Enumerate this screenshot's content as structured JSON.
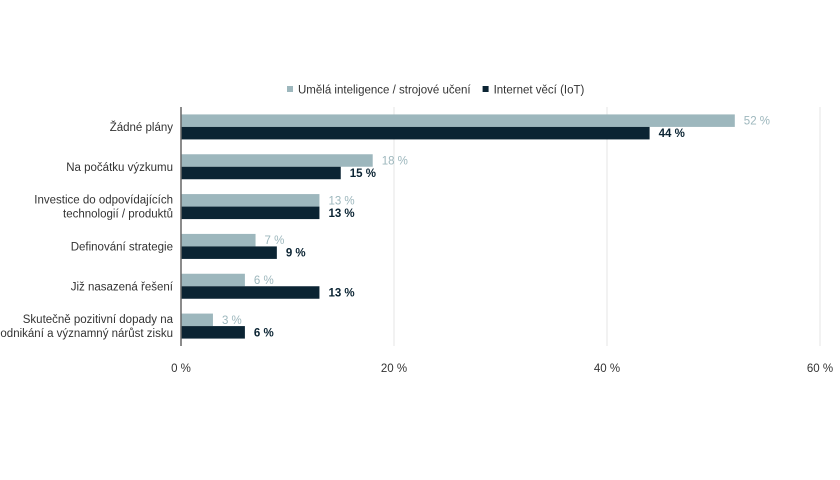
{
  "chart_data": {
    "type": "bar",
    "orientation": "horizontal",
    "categories": [
      [
        "Žádné plány"
      ],
      [
        "Na počátku výzkumu"
      ],
      [
        "Investice do odpovídajících",
        "technologií / produktů"
      ],
      [
        "Definování strategie"
      ],
      [
        "Již nasazená řešení"
      ],
      [
        "Skutečně pozitivní dopady na",
        "podnikání a významný nárůst zisku"
      ]
    ],
    "series": [
      {
        "name": "Umělá inteligence / strojové učení",
        "color": "#9db7bd",
        "values": [
          52,
          18,
          13,
          7,
          6,
          3
        ],
        "labels": [
          "52 %",
          "18 %",
          "13 %",
          "7 %",
          "6 %",
          "3 %"
        ]
      },
      {
        "name": "Internet věcí (IoT)",
        "color": "#0b2433",
        "values": [
          44,
          15,
          13,
          9,
          13,
          6
        ],
        "labels": [
          "44 %",
          "15 %",
          "13 %",
          "9 %",
          "13 %",
          "6 %"
        ]
      }
    ],
    "xlim": [
      0,
      60
    ],
    "xticks": [
      0,
      20,
      40,
      60
    ],
    "xtick_labels": [
      "0 %",
      "20 %",
      "40 %",
      "60 %"
    ],
    "grid": true,
    "legend_position": "top-right",
    "title": "",
    "xlabel": "",
    "ylabel": ""
  }
}
